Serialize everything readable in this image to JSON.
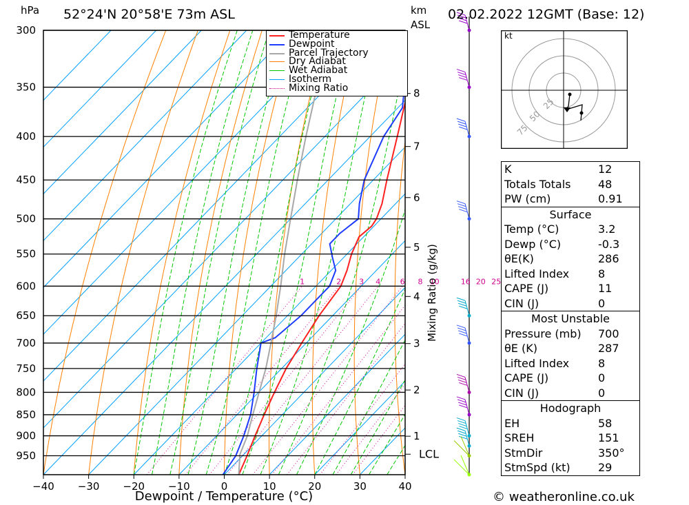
{
  "header": {
    "location": "52°24'N  20°58'E  73m  ASL",
    "pressure_unit": "hPa",
    "km_unit": "km",
    "asl_unit": "ASL",
    "date": "02.02.2022  12GMT  (Base: 12)"
  },
  "footer": {
    "credit": "© weatheronline.co.uk"
  },
  "chart_data": {
    "type": "line",
    "xlabel": "Dewpoint / Temperature (°C)",
    "ylabel_right": "Mixing Ratio (g/kg)",
    "x_ticks": [
      -40,
      -30,
      -20,
      -10,
      0,
      10,
      20,
      30,
      40
    ],
    "pressure_levels": [
      300,
      350,
      400,
      450,
      500,
      550,
      600,
      650,
      700,
      750,
      800,
      850,
      900,
      950
    ],
    "km_ticks": [
      {
        "km": "1",
        "p": 901
      },
      {
        "km": "2",
        "p": 795
      },
      {
        "km": "3",
        "p": 701
      },
      {
        "km": "4",
        "p": 617
      },
      {
        "km": "5",
        "p": 540
      },
      {
        "km": "6",
        "p": 472
      },
      {
        "km": "7",
        "p": 411
      },
      {
        "km": "8",
        "p": 356
      }
    ],
    "lcl": {
      "label": "LCL",
      "p": 946
    },
    "mixing_ratio_labels": [
      "1",
      "2",
      "3",
      "4",
      "6",
      "8",
      "10",
      "16",
      "20",
      "25"
    ],
    "legend": [
      "Temperature",
      "Dewpoint",
      "Parcel Trajectory",
      "Dry Adiabat",
      "Wet Adiabat",
      "Isotherm",
      "Mixing Ratio"
    ],
    "colors": {
      "temperature": "#ff2020",
      "dewpoint": "#1e3cff",
      "parcel": "#a8a8a8",
      "dry_adiabat": "#ff8000",
      "wet_adiabat": "#00c800",
      "isotherm": "#00a0ff",
      "mixing_ratio": "#d00090"
    },
    "series": [
      {
        "name": "Temperature",
        "points": [
          [
            1000,
            3.2
          ],
          [
            950,
            1.0
          ],
          [
            900,
            -1.5
          ],
          [
            850,
            -4.0
          ],
          [
            800,
            -6.5
          ],
          [
            750,
            -9.0
          ],
          [
            700,
            -11.0
          ],
          [
            650,
            -13.0
          ],
          [
            600,
            -14.5
          ],
          [
            575,
            -16.5
          ],
          [
            550,
            -19.0
          ],
          [
            525,
            -21.0
          ],
          [
            510,
            -20.5
          ],
          [
            500,
            -21.0
          ],
          [
            480,
            -23.0
          ],
          [
            450,
            -27.0
          ],
          [
            400,
            -34.0
          ],
          [
            350,
            -42.0
          ],
          [
            325,
            -46.0
          ],
          [
            305,
            -47.0
          ],
          [
            300,
            -47.0
          ]
        ]
      },
      {
        "name": "Dewpoint",
        "points": [
          [
            1000,
            -0.3
          ],
          [
            950,
            -1.5
          ],
          [
            900,
            -4.0
          ],
          [
            850,
            -7.0
          ],
          [
            800,
            -11.0
          ],
          [
            750,
            -15.5
          ],
          [
            700,
            -20.0
          ],
          [
            690,
            -18.0
          ],
          [
            650,
            -17.0
          ],
          [
            600,
            -17.0
          ],
          [
            575,
            -19.0
          ],
          [
            555,
            -22.5
          ],
          [
            535,
            -26.0
          ],
          [
            520,
            -26.0
          ],
          [
            500,
            -25.0
          ],
          [
            480,
            -28.0
          ],
          [
            450,
            -32.0
          ],
          [
            400,
            -37.0
          ],
          [
            370,
            -39.0
          ],
          [
            340,
            -45.0
          ],
          [
            318,
            -49.0
          ],
          [
            300,
            -50.0
          ]
        ]
      },
      {
        "name": "Parcel Trajectory",
        "points": [
          [
            1000,
            3.2
          ],
          [
            946,
            -0.9
          ],
          [
            900,
            -3.2
          ],
          [
            850,
            -6.5
          ],
          [
            800,
            -9.9
          ],
          [
            750,
            -13.5
          ],
          [
            700,
            -17.8
          ],
          [
            650,
            -22.5
          ],
          [
            600,
            -27.8
          ],
          [
            550,
            -33.8
          ],
          [
            500,
            -40.0
          ],
          [
            450,
            -46.8
          ],
          [
            400,
            -54.2
          ],
          [
            350,
            -62.3
          ],
          [
            300,
            -71.5
          ]
        ]
      }
    ]
  },
  "hodograph": {
    "unit": "kt",
    "rings": [
      "25",
      "50",
      "75"
    ]
  },
  "indices": [
    {
      "label": "K",
      "value": "12"
    },
    {
      "label": "Totals Totals",
      "value": "48"
    },
    {
      "label": "PW (cm)",
      "value": "0.91"
    }
  ],
  "surface": {
    "title": "Surface",
    "rows": [
      {
        "label": "Temp (°C)",
        "value": "3.2"
      },
      {
        "label": "Dewp (°C)",
        "value": "-0.3"
      },
      {
        "label": "θE(K)",
        "value": "286"
      },
      {
        "label": "Lifted Index",
        "value": "8"
      },
      {
        "label": "CAPE (J)",
        "value": "11"
      },
      {
        "label": "CIN (J)",
        "value": "0"
      }
    ]
  },
  "most_unstable": {
    "title": "Most Unstable",
    "rows": [
      {
        "label": "Pressure (mb)",
        "value": "700"
      },
      {
        "label": "θE (K)",
        "value": "287"
      },
      {
        "label": "Lifted Index",
        "value": "8"
      },
      {
        "label": "CAPE (J)",
        "value": "0"
      },
      {
        "label": "CIN (J)",
        "value": "0"
      }
    ]
  },
  "hodograph_table": {
    "title": "Hodograph",
    "rows": [
      {
        "label": "EH",
        "value": "58"
      },
      {
        "label": "SREH",
        "value": "151"
      },
      {
        "label": "StmDir",
        "value": "350°"
      },
      {
        "label": "StmSpd (kt)",
        "value": "29"
      }
    ]
  }
}
